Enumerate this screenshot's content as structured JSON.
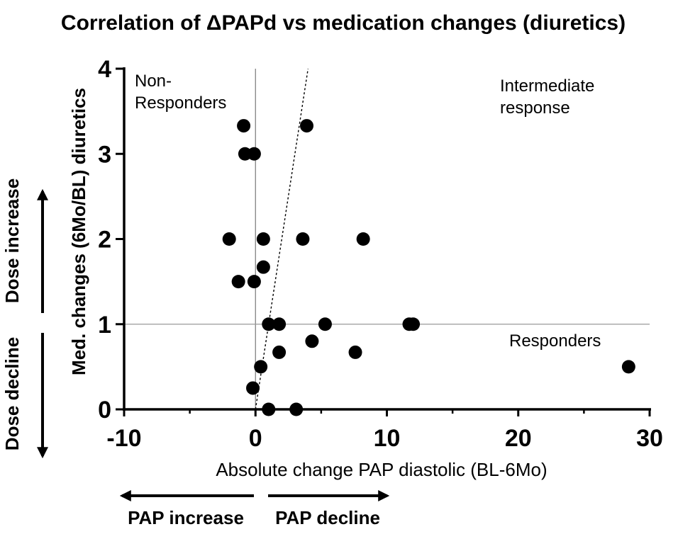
{
  "chart_data": {
    "type": "scatter",
    "title": "Correlation of ΔPAPd vs medication changes (diuretics)",
    "xlabel": "Absolute change PAP diastolic (BL-6Mo)",
    "ylabel": "Med. changes (6Mo/BL) diuretics",
    "xlim": [
      -10,
      30
    ],
    "ylim": [
      0,
      4
    ],
    "x_ticks": [
      "-10",
      "0",
      "10",
      "20",
      "30"
    ],
    "y_ticks": [
      "0",
      "1",
      "2",
      "3",
      "4"
    ],
    "reference_lines": {
      "vertical_x": 0,
      "horizontal_y": 1,
      "dotted_diagonal": [
        [
          0,
          0
        ],
        [
          4,
          4
        ]
      ]
    },
    "points": [
      {
        "x": -0.9,
        "y": 3.33
      },
      {
        "x": 3.9,
        "y": 3.33
      },
      {
        "x": -0.8,
        "y": 3.0
      },
      {
        "x": -0.1,
        "y": 3.0
      },
      {
        "x": -2.0,
        "y": 2.0
      },
      {
        "x": 0.6,
        "y": 2.0
      },
      {
        "x": 3.6,
        "y": 2.0
      },
      {
        "x": 8.2,
        "y": 2.0
      },
      {
        "x": 0.6,
        "y": 1.67
      },
      {
        "x": -1.3,
        "y": 1.5
      },
      {
        "x": -0.1,
        "y": 1.5
      },
      {
        "x": 1.0,
        "y": 1.0
      },
      {
        "x": 1.8,
        "y": 1.0
      },
      {
        "x": 5.3,
        "y": 1.0
      },
      {
        "x": 11.7,
        "y": 1.0
      },
      {
        "x": 12.0,
        "y": 1.0
      },
      {
        "x": 4.3,
        "y": 0.8
      },
      {
        "x": 1.8,
        "y": 0.67
      },
      {
        "x": 7.6,
        "y": 0.67
      },
      {
        "x": 0.4,
        "y": 0.5
      },
      {
        "x": 28.4,
        "y": 0.5
      },
      {
        "x": -0.2,
        "y": 0.25
      },
      {
        "x": 1.0,
        "y": 0.0
      },
      {
        "x": 3.1,
        "y": 0.0
      }
    ],
    "annotations": {
      "non_responders": [
        "Non-",
        "Responders"
      ],
      "intermediate": [
        "Intermediate",
        "response"
      ],
      "responders": "Responders"
    },
    "side_labels": {
      "dose_increase": "Dose increase",
      "dose_decline": "Dose decline",
      "pap_increase": "PAP increase",
      "pap_decline": "PAP decline"
    }
  }
}
